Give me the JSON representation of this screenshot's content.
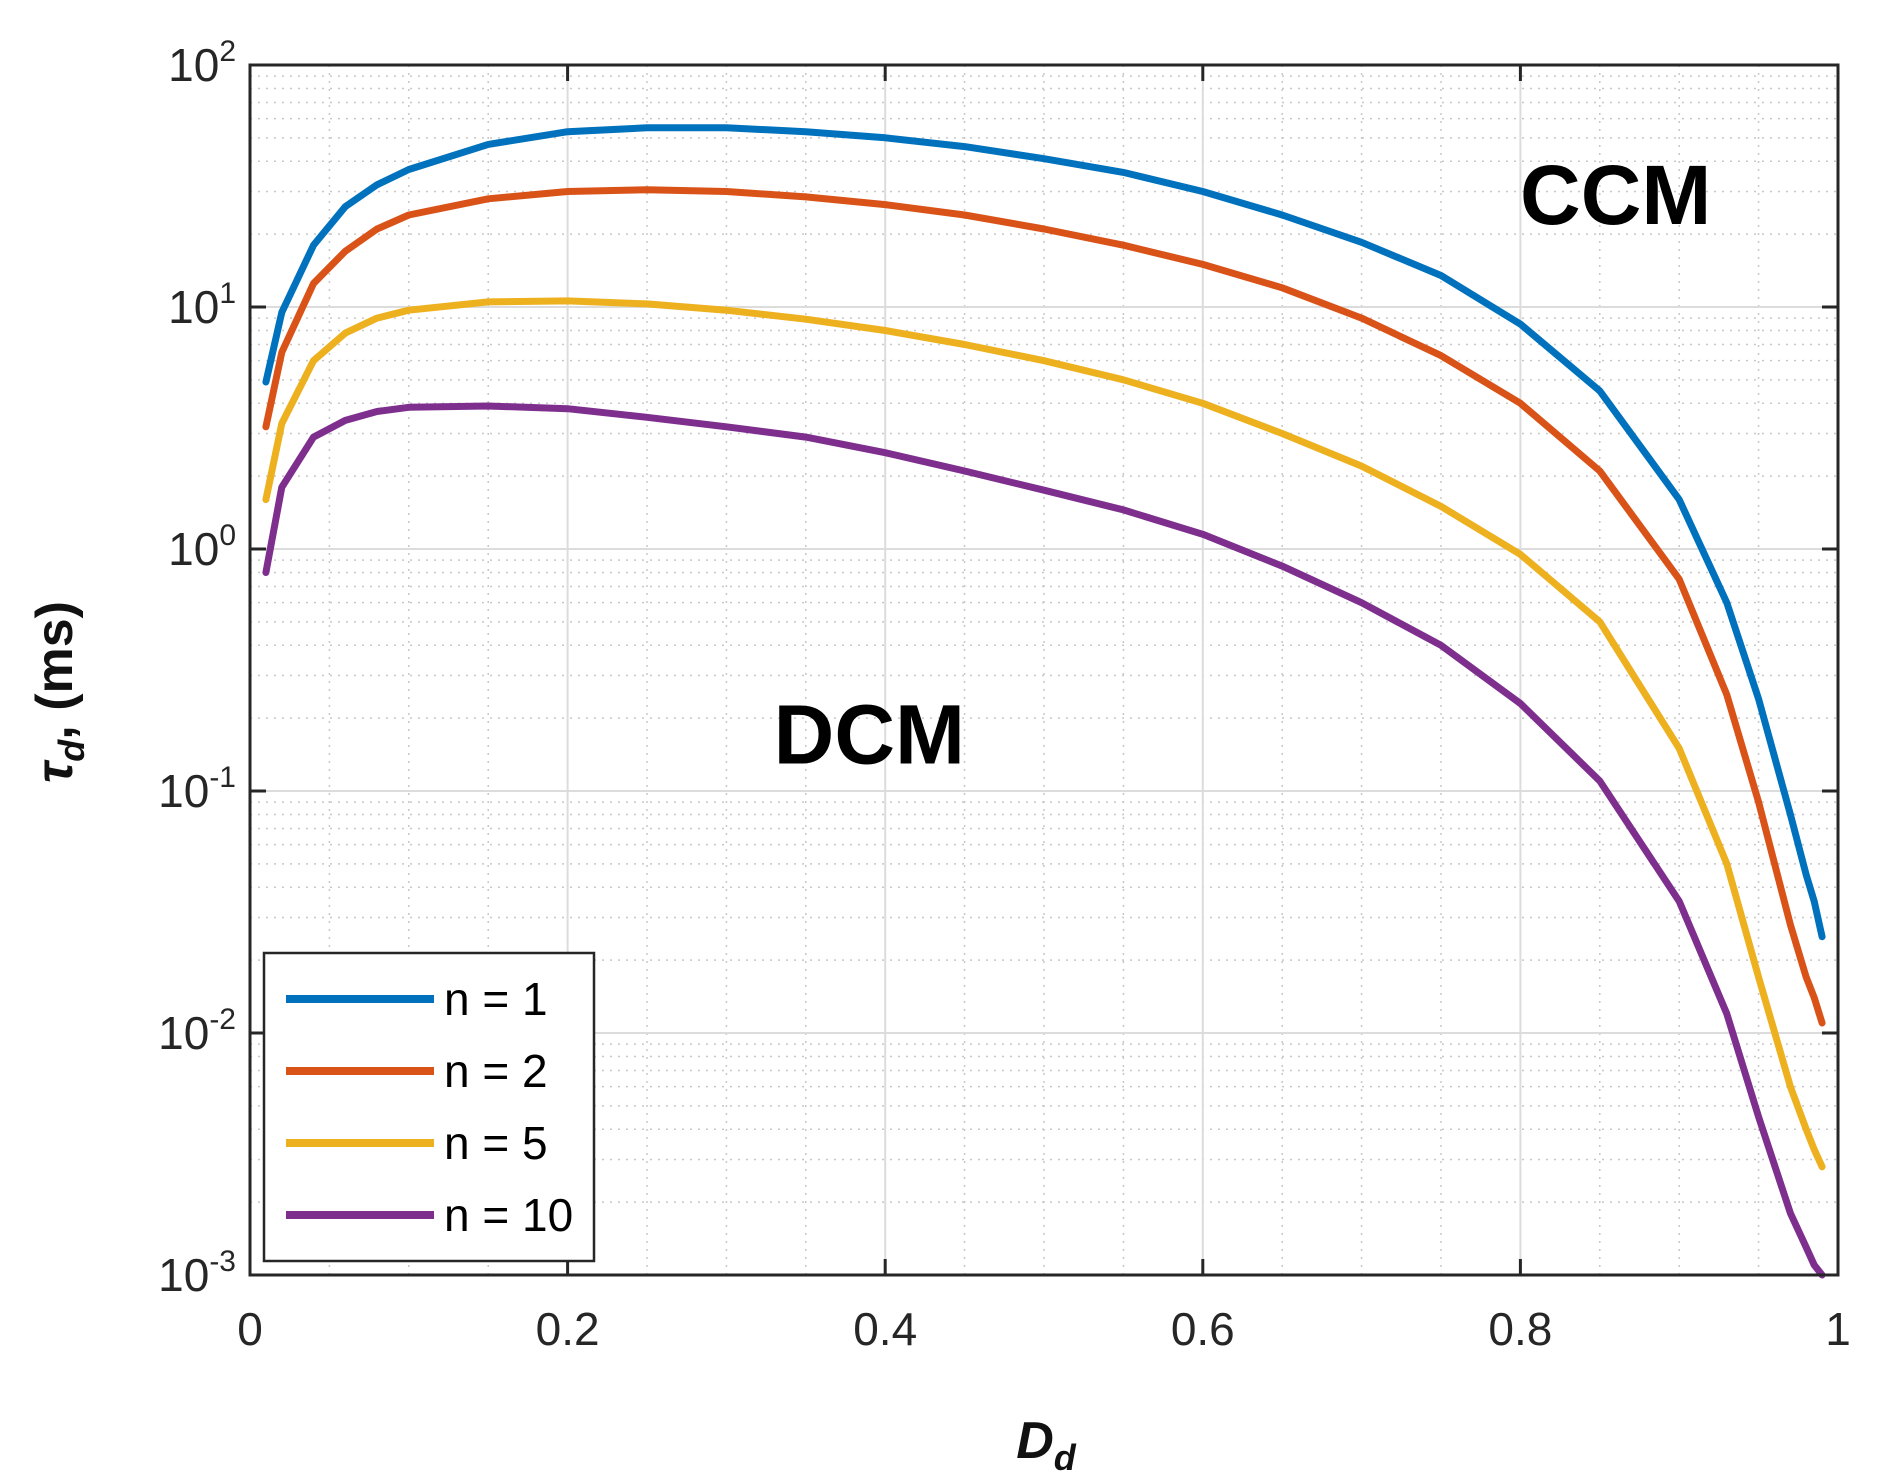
{
  "chart_data": {
    "type": "line",
    "title": "",
    "xlabel": {
      "main": "D",
      "sub": "d"
    },
    "ylabel": {
      "symbol": "τ",
      "sub": "d",
      "suffix": ", (ms)"
    },
    "xscale": "linear",
    "yscale": "log",
    "xlim": [
      0,
      1
    ],
    "ylim": [
      0.001,
      100
    ],
    "grid": true,
    "minor_grid": true,
    "x_ticks": [
      {
        "value": 0,
        "label": "0"
      },
      {
        "value": 0.2,
        "label": "0.2"
      },
      {
        "value": 0.4,
        "label": "0.4"
      },
      {
        "value": 0.6,
        "label": "0.6"
      },
      {
        "value": 0.8,
        "label": "0.8"
      },
      {
        "value": 1,
        "label": "1"
      }
    ],
    "y_ticks": [
      {
        "exp": -3,
        "base": "10",
        "sup": "-3"
      },
      {
        "exp": -2,
        "base": "10",
        "sup": "-2"
      },
      {
        "exp": -1,
        "base": "10",
        "sup": "-1"
      },
      {
        "exp": 0,
        "base": "10",
        "sup": "0"
      },
      {
        "exp": 1,
        "base": "10",
        "sup": "1"
      },
      {
        "exp": 2,
        "base": "10",
        "sup": "2"
      }
    ],
    "x": [
      0.01,
      0.02,
      0.04,
      0.06,
      0.08,
      0.1,
      0.15,
      0.2,
      0.25,
      0.3,
      0.35,
      0.4,
      0.45,
      0.5,
      0.55,
      0.6,
      0.65,
      0.7,
      0.75,
      0.8,
      0.85,
      0.9,
      0.93,
      0.95,
      0.97,
      0.98,
      0.985,
      0.99
    ],
    "series": [
      {
        "name": "n = 1",
        "color": "#0072BD",
        "values": [
          4.9,
          9.5,
          18,
          26,
          32,
          37,
          47,
          53,
          55,
          55,
          53,
          50,
          46,
          41,
          36,
          30,
          24,
          18.5,
          13.5,
          8.5,
          4.5,
          1.6,
          0.6,
          0.24,
          0.08,
          0.045,
          0.035,
          0.025
        ]
      },
      {
        "name": "n = 2",
        "color": "#D95319",
        "values": [
          3.2,
          6.5,
          12.5,
          17,
          21,
          24,
          28,
          30,
          30.5,
          30,
          28.5,
          26.5,
          24,
          21,
          18,
          15,
          12,
          9,
          6.3,
          4,
          2.1,
          0.75,
          0.25,
          0.09,
          0.028,
          0.017,
          0.014,
          0.011
        ]
      },
      {
        "name": "n = 5",
        "color": "#EDB120",
        "values": [
          1.6,
          3.3,
          6,
          7.8,
          9,
          9.7,
          10.5,
          10.6,
          10.3,
          9.7,
          8.9,
          8,
          7,
          6,
          5,
          4,
          3,
          2.2,
          1.5,
          0.95,
          0.5,
          0.15,
          0.05,
          0.017,
          0.006,
          0.004,
          0.0033,
          0.0028
        ]
      },
      {
        "name": "n = 10",
        "color": "#7E2F8E",
        "values": [
          0.8,
          1.8,
          2.9,
          3.4,
          3.7,
          3.85,
          3.9,
          3.8,
          3.5,
          3.2,
          2.9,
          2.5,
          2.1,
          1.75,
          1.45,
          1.15,
          0.85,
          0.6,
          0.4,
          0.23,
          0.11,
          0.035,
          0.012,
          0.0045,
          0.0018,
          0.0013,
          0.0011,
          0.001
        ]
      }
    ],
    "annotations": [
      {
        "text": "CCM",
        "x": 0.86,
        "y": 22
      },
      {
        "text": "DCM",
        "x": 0.39,
        "y": 0.13
      }
    ],
    "legend": {
      "location": "bottom-left"
    }
  }
}
